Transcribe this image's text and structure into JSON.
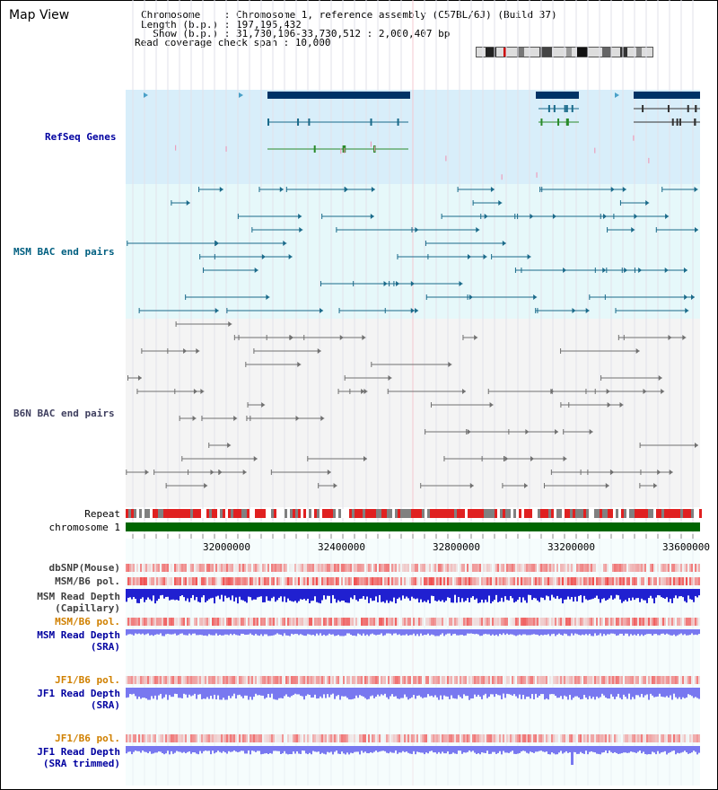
{
  "view": {
    "title": "Map View",
    "chromosome_line": "Chromosome    : Chromosome 1, reference assembly (C57BL/6J) (Build 37)",
    "length_line": "Length (b.p.) : 197,195,432",
    "show_line": "  Show (b.p.) : 31,730,106-33,730,512 : 2,000,407 bp",
    "coverage_line": "Read coverage check span : 10,000"
  },
  "tracks": {
    "refseq": "RefSeq Genes",
    "msm_bac": "MSM BAC end pairs",
    "b6n_bac": "B6N BAC end pairs",
    "repeat": "Repeat",
    "chromosome": "chromosome 1",
    "dbsnp": "dbSNP(Mouse)",
    "msm_b6_pol_1": "MSM/B6 pol.",
    "msm_read_depth_cap_1": "MSM Read Depth",
    "msm_read_depth_cap_2": "(Capillary)",
    "msm_b6_pol_2": "MSM/B6 pol.",
    "msm_read_depth_sra_1": "MSM Read Depth",
    "msm_read_depth_sra_2": "(SRA)",
    "jf1_b6_pol_1": "JF1/B6 pol.",
    "jf1_read_depth_1": "JF1 Read Depth",
    "jf1_read_depth_2": "(SRA)",
    "jf1_b6_pol_2": "JF1/B6 pol.",
    "jf1_read_depth_trim_1": "JF1 Read Depth",
    "jf1_read_depth_trim_2": "(SRA trimmed)"
  },
  "axis": {
    "ticks": [
      "32000000",
      "32400000",
      "32800000",
      "33200000",
      "33600000"
    ]
  },
  "colors": {
    "refseq_bg": "#d8eefa",
    "msm_bg": "#e6f8fa",
    "b6n_bg": "#f4f4f4",
    "gene": "#003366",
    "msm_pair": "#1a6a8a",
    "b6n_pair": "#707070",
    "depth_dark": "#2020d0",
    "depth_light": "#7878f0",
    "label_blue": "#0000a0",
    "label_teal": "#005f80",
    "label_gray": "#404060",
    "label_orange": "#d08000",
    "chromosome_bar": "#006600"
  }
}
